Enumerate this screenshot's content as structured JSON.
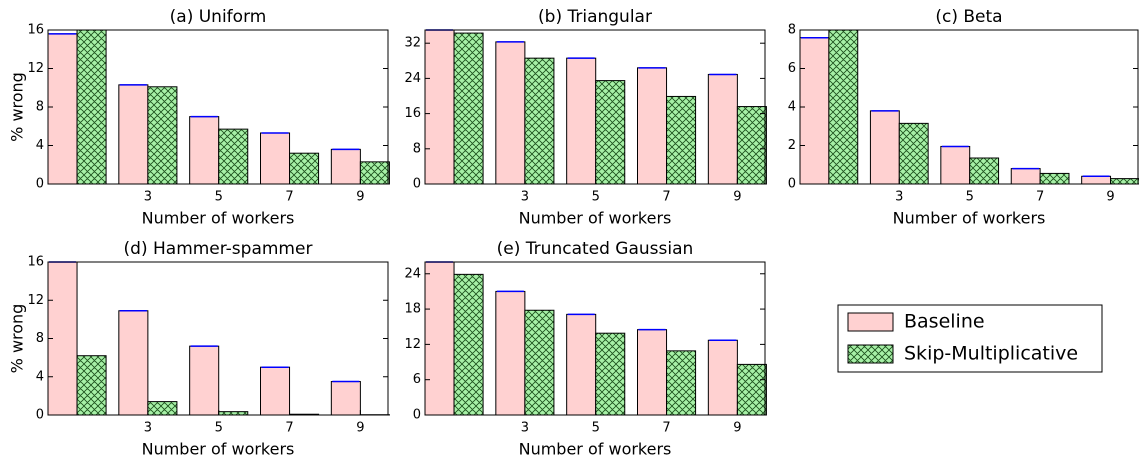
{
  "chart_data": [
    {
      "type": "bar",
      "title": "(a) Uniform",
      "x_label": "Number of workers",
      "y_label": "% wrong",
      "categories": [
        null,
        "3",
        "5",
        "7",
        "9"
      ],
      "series": [
        {
          "name": "Baseline",
          "color": "#ffd1d1",
          "values": [
            15.6,
            10.3,
            7.0,
            5.3,
            3.6
          ]
        },
        {
          "name": "Skip-Multiplicative",
          "color": "#a6f0a6",
          "hatch": "xx",
          "values": [
            16,
            10.1,
            5.7,
            3.2,
            2.3
          ]
        }
      ],
      "ylim": [
        0,
        16
      ],
      "yticks": [
        0,
        4,
        8,
        12,
        16
      ],
      "legend": "lower right"
    },
    {
      "type": "bar",
      "title": "(b) Triangular",
      "x_label": "Number of workers",
      "categories": [
        null,
        "3",
        "5",
        "7",
        "9"
      ],
      "series": [
        {
          "values": [
            35,
            32.3,
            28.6,
            26.4,
            24.9
          ]
        },
        {
          "values": [
            34.3,
            28.6,
            23.5,
            19.9,
            17.6
          ]
        }
      ],
      "ylim": [
        0,
        35
      ],
      "yticks": [
        0,
        8,
        16,
        24,
        32
      ]
    },
    {
      "type": "bar",
      "title": "(c) Beta",
      "x_label": "Number of workers",
      "categories": [
        null,
        "3",
        "5",
        "7",
        "9"
      ],
      "series": [
        {
          "values": [
            7.6,
            3.8,
            1.95,
            0.8,
            0.4
          ]
        },
        {
          "values": [
            8,
            3.15,
            1.35,
            0.55,
            0.28
          ]
        }
      ],
      "ylim": [
        0,
        8
      ],
      "yticks": [
        0,
        2,
        4,
        6,
        8
      ]
    },
    {
      "type": "bar",
      "title": "(d) Hammer-spammer",
      "x_label": "Number of workers",
      "y_label": "% wrong",
      "categories": [
        null,
        "3",
        "5",
        "7",
        "9"
      ],
      "series": [
        {
          "values": [
            16,
            10.9,
            7.2,
            5.0,
            3.5
          ]
        },
        {
          "values": [
            6.2,
            1.4,
            0.35,
            0.08,
            0.03
          ]
        }
      ],
      "ylim": [
        0,
        16
      ],
      "yticks": [
        0,
        4,
        8,
        12,
        16
      ]
    },
    {
      "type": "bar",
      "title": "(e) Truncated Gaussian",
      "x_label": "Number of workers",
      "categories": [
        null,
        "3",
        "5",
        "7",
        "9"
      ],
      "series": [
        {
          "values": [
            26,
            21.0,
            17.1,
            14.5,
            12.7
          ]
        },
        {
          "values": [
            23.9,
            17.8,
            13.9,
            10.9,
            8.6
          ]
        }
      ],
      "ylim": [
        0,
        26
      ],
      "yticks": [
        0,
        6,
        12,
        18,
        24
      ]
    }
  ]
}
